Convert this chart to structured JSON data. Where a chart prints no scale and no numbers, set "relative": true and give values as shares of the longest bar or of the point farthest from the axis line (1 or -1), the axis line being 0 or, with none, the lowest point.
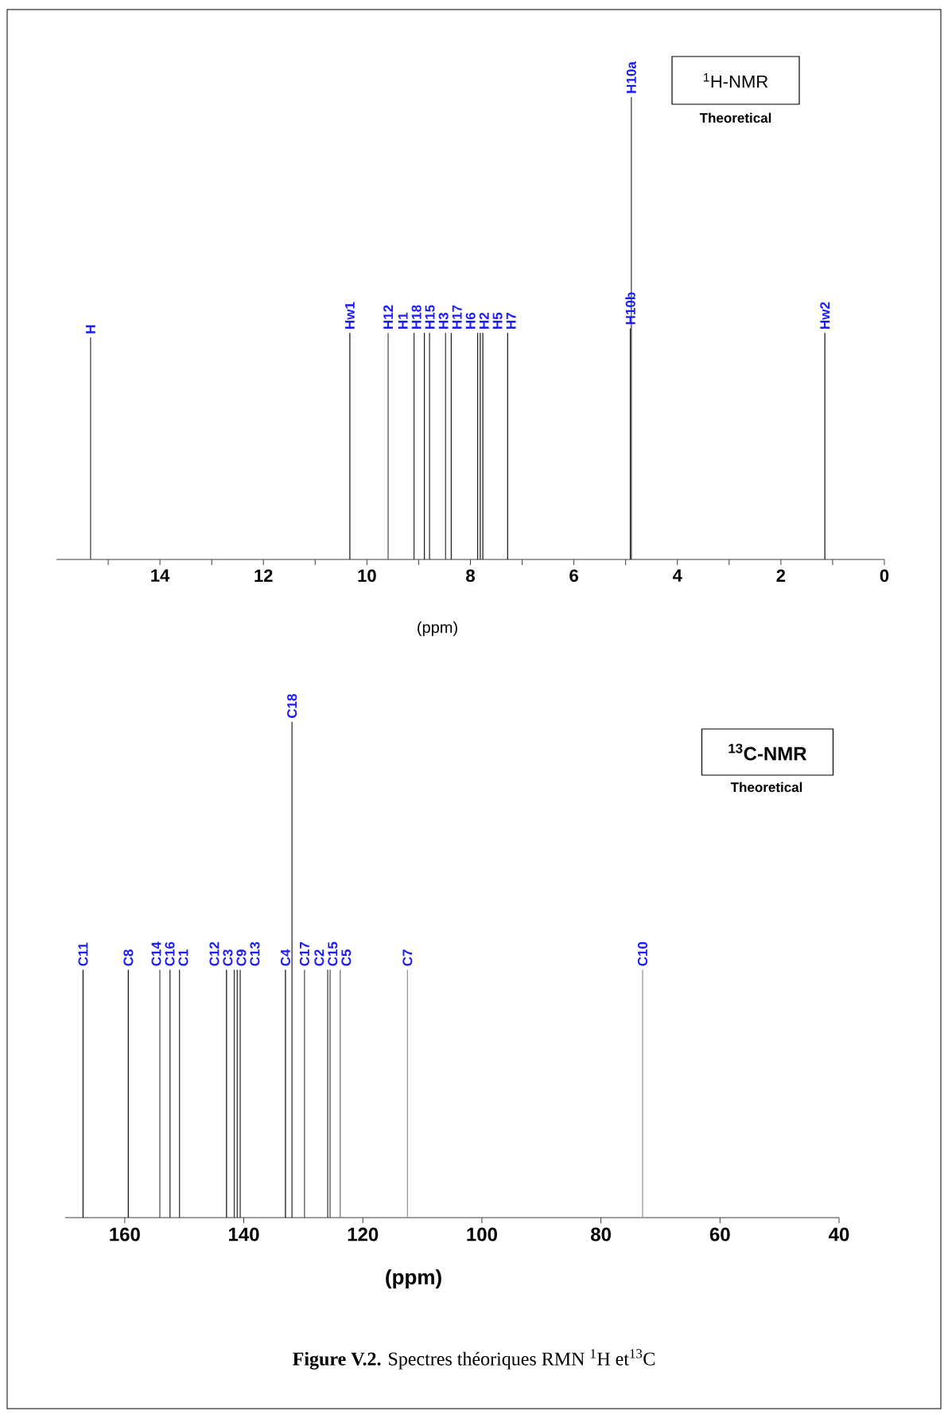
{
  "chart_data": [
    {
      "type": "bar",
      "relative": true,
      "xlabel": "(ppm)",
      "xlim": [
        16,
        0
      ],
      "xticks": [
        {
          "value": 15,
          "label": null
        },
        14,
        {
          "value": 13,
          "label": null
        },
        12,
        {
          "value": 11,
          "label": null
        },
        10,
        {
          "value": 9,
          "label": null
        },
        8,
        {
          "value": 7,
          "label": null
        },
        6,
        {
          "value": 5,
          "label": null
        },
        4,
        {
          "value": 3,
          "label": null
        },
        2,
        {
          "value": 1,
          "label": null
        },
        0
      ],
      "x": [
        15.34,
        10.33,
        9.59,
        9.09,
        8.89,
        8.79,
        8.48,
        8.37,
        7.86,
        7.81,
        7.76,
        7.28,
        4.91,
        4.89,
        1.15
      ],
      "values": [
        0.48,
        0.49,
        0.49,
        0.49,
        0.49,
        0.49,
        0.49,
        0.49,
        0.49,
        0.49,
        0.49,
        0.49,
        0.5,
        1,
        0.49
      ],
      "colors": [
        "#444444",
        "#222222",
        "#555555",
        "#333333",
        "#222222",
        "#333333",
        "#444444",
        "#222222",
        "#222222",
        "#222222",
        "#222222",
        "#222222",
        "#222222",
        "#444444",
        "#222222"
      ],
      "annotations": [
        "$^{1}$H-NMR",
        "Theoretical",
        {
          "text": "H",
          "x": 15.34,
          "y": 0.48
        },
        {
          "text": "Hw1",
          "x": 10.33,
          "y": 0.49
        },
        {
          "text": "H12",
          "x": 9.59,
          "y": 0.49
        },
        {
          "text": "H1",
          "x": 9.09,
          "y": 0.49
        },
        {
          "text": "H18",
          "x": 8.89,
          "y": 0.49
        },
        {
          "text": "H15",
          "x": 8.79,
          "y": 0.49
        },
        {
          "text": "H3",
          "x": 8.48,
          "y": 0.49
        },
        {
          "text": "H17",
          "x": 8.37,
          "y": 0.49
        },
        {
          "text": "H6",
          "x": 7.86,
          "y": 0.49
        },
        {
          "text": "H2",
          "x": 7.81,
          "y": 0.49
        },
        {
          "text": "H5",
          "x": 7.76,
          "y": 0.49
        },
        {
          "text": "H7",
          "x": 7.28,
          "y": 0.49
        },
        {
          "text": "H10b",
          "x": 4.91,
          "y": 0.5
        },
        {
          "text": "H10a",
          "x": 4.89,
          "y": 1
        },
        {
          "text": "Hw2",
          "x": 1.15,
          "y": 0.49
        }
      ]
    },
    {
      "type": "bar",
      "relative": true,
      "xlabel": "(ppm)",
      "xlim": [
        170,
        40
      ],
      "xticks": [
        160,
        140,
        120,
        100,
        80,
        60,
        40
      ],
      "x": [
        167.0,
        159.4,
        154.1,
        152.4,
        150.8,
        142.9,
        141.6,
        141.1,
        140.6,
        133.0,
        131.9,
        129.8,
        125.9,
        125.5,
        123.8,
        112.5,
        73.0
      ],
      "values": [
        0.5,
        0.5,
        0.5,
        0.5,
        0.5,
        0.5,
        0.5,
        0.5,
        0.5,
        0.5,
        1,
        0.5,
        0.5,
        0.5,
        0.5,
        0.5,
        0.5
      ],
      "colors": [
        "#1a1a1a",
        "#1a1a1a",
        "#555555",
        "#333333",
        "#333333",
        "#1a1a1a",
        "#333333",
        "#333333",
        "#333333",
        "#1a1a1a",
        "#333333",
        "#555555",
        "#444444",
        "#555555",
        "#777777",
        "#999999",
        "#999999"
      ],
      "annotations": [
        "$^{13}$C-NMR",
        "Theoretical",
        "**Figure V.2.** Spectres théoriques RMN $^{1}$H et$^{13}$C",
        {
          "text": "C11",
          "x": 167.0,
          "y": 0.5
        },
        {
          "text": "C8",
          "x": 159.4,
          "y": 0.5
        },
        {
          "text": "C14",
          "x": 154.1,
          "y": 0.5
        },
        {
          "text": "C16",
          "x": 152.4,
          "y": 0.5
        },
        {
          "text": "C1",
          "x": 150.8,
          "y": 0.5
        },
        {
          "text": "C12",
          "x": 142.9,
          "y": 0.5
        },
        {
          "text": "C3",
          "x": 141.6,
          "y": 0.5
        },
        {
          "text": "C9",
          "x": 141.1,
          "y": 0.5
        },
        {
          "text": "C13",
          "x": 140.6,
          "y": 0.5
        },
        {
          "text": "C4",
          "x": 133.0,
          "y": 0.5
        },
        {
          "text": "C18",
          "x": 131.9,
          "y": 1
        },
        {
          "text": "C17",
          "x": 129.8,
          "y": 0.5
        },
        {
          "text": "C2",
          "x": 125.9,
          "y": 0.5
        },
        {
          "text": "C15",
          "x": 125.5,
          "y": 0.5
        },
        {
          "text": "C5",
          "x": 123.8,
          "y": 0.5
        },
        {
          "text": "C7",
          "x": 112.5,
          "y": 0.5
        },
        {
          "text": "C10",
          "x": 73.0,
          "y": 0.5
        }
      ]
    }
  ]
}
